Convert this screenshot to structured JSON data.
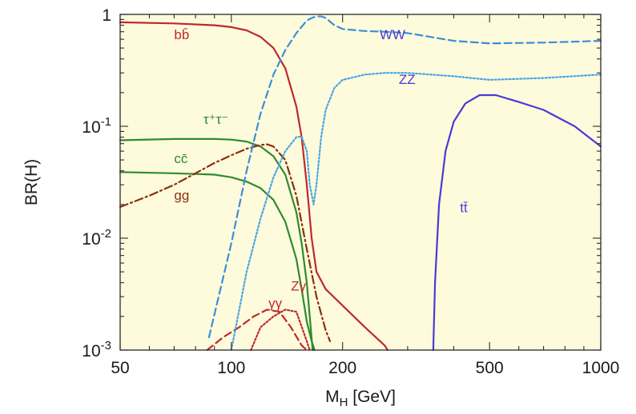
{
  "chart_data": {
    "type": "line",
    "title": "",
    "xlabel": "M",
    "xlabel_sub": "H",
    "xlabel_unit": " [GeV]",
    "ylabel": "BR(H)",
    "xscale": "log",
    "yscale": "log",
    "xlim": [
      50,
      1000
    ],
    "ylim": [
      0.001,
      1
    ],
    "grid": false,
    "legend": "none",
    "background": "#fdfbdc",
    "x_ticks": [
      {
        "value": 50,
        "label": "50"
      },
      {
        "value": 100,
        "label": "100"
      },
      {
        "value": 200,
        "label": "200"
      },
      {
        "value": 500,
        "label": "500"
      },
      {
        "value": 1000,
        "label": "1000"
      }
    ],
    "y_ticks": [
      {
        "value": 1,
        "base": "1",
        "exp": ""
      },
      {
        "value": 0.1,
        "base": "10",
        "exp": "-1"
      },
      {
        "value": 0.01,
        "base": "10",
        "exp": "-2"
      },
      {
        "value": 0.001,
        "base": "10",
        "exp": "-3"
      }
    ],
    "series": [
      {
        "name": "bb̄",
        "color": "#c0282c",
        "dash": "solid",
        "x": [
          50,
          70,
          90,
          100,
          110,
          120,
          130,
          140,
          150,
          155,
          160,
          165,
          170,
          180,
          200,
          230,
          260,
          265
        ],
        "y": [
          0.85,
          0.83,
          0.8,
          0.77,
          0.72,
          0.63,
          0.5,
          0.33,
          0.15,
          0.08,
          0.03,
          0.01,
          0.005,
          0.0035,
          0.0025,
          0.0016,
          0.0011,
          0.001
        ]
      },
      {
        "name": "τ⁺τ⁻",
        "color": "#2e8b2e",
        "dash": "solid",
        "x": [
          50,
          70,
          90,
          100,
          110,
          120,
          130,
          140,
          150,
          155,
          160,
          163,
          166
        ],
        "y": [
          0.075,
          0.077,
          0.077,
          0.076,
          0.073,
          0.066,
          0.054,
          0.037,
          0.017,
          0.009,
          0.004,
          0.002,
          0.001
        ]
      },
      {
        "name": "cc̄",
        "color": "#2e8b2e",
        "dash": "solid",
        "x": [
          50,
          70,
          90,
          100,
          110,
          120,
          130,
          140,
          150,
          155,
          160,
          165,
          168
        ],
        "y": [
          0.039,
          0.038,
          0.037,
          0.035,
          0.032,
          0.028,
          0.022,
          0.014,
          0.0065,
          0.0035,
          0.0018,
          0.0012,
          0.001
        ]
      },
      {
        "name": "gg",
        "color": "#8b2f10",
        "dash": "dashdot",
        "x": [
          50,
          60,
          70,
          80,
          90,
          100,
          110,
          120,
          125,
          130,
          140,
          150,
          160,
          170,
          180,
          185
        ],
        "y": [
          0.019,
          0.024,
          0.03,
          0.038,
          0.047,
          0.055,
          0.063,
          0.068,
          0.069,
          0.066,
          0.05,
          0.024,
          0.008,
          0.003,
          0.0015,
          0.0012
        ]
      },
      {
        "name": "γγ",
        "color": "#c0282c",
        "dash": "dashed",
        "x": [
          86,
          95,
          105,
          115,
          125,
          135,
          145,
          155,
          160
        ],
        "y": [
          0.001,
          0.0013,
          0.0016,
          0.002,
          0.0023,
          0.0022,
          0.0016,
          0.0011,
          0.001
        ]
      },
      {
        "name": "Zγ",
        "color": "#c0282c",
        "dash": "dotted",
        "x": [
          113,
          120,
          130,
          140,
          150,
          160,
          163
        ],
        "y": [
          0.001,
          0.0016,
          0.002,
          0.0023,
          0.0022,
          0.0012,
          0.001
        ]
      },
      {
        "name": "WW",
        "color": "#3a8fd6",
        "dash": "dashed",
        "x": [
          87,
          100,
          110,
          120,
          130,
          140,
          150,
          160,
          165,
          170,
          175,
          180,
          190,
          200,
          230,
          260,
          300,
          400,
          500,
          700,
          1000
        ],
        "y": [
          0.0013,
          0.009,
          0.04,
          0.13,
          0.29,
          0.48,
          0.68,
          0.88,
          0.93,
          0.96,
          0.96,
          0.93,
          0.8,
          0.74,
          0.71,
          0.7,
          0.68,
          0.58,
          0.55,
          0.56,
          0.58
        ]
      },
      {
        "name": "ZZ",
        "color": "#48a6e2",
        "dash": "dotted",
        "x": [
          100,
          110,
          120,
          130,
          140,
          150,
          155,
          160,
          163,
          167,
          170,
          175,
          180,
          190,
          200,
          230,
          260,
          300,
          400,
          500,
          700,
          1000
        ],
        "y": [
          0.001,
          0.005,
          0.015,
          0.035,
          0.06,
          0.08,
          0.081,
          0.06,
          0.03,
          0.02,
          0.03,
          0.08,
          0.14,
          0.22,
          0.26,
          0.29,
          0.3,
          0.3,
          0.28,
          0.26,
          0.27,
          0.29
        ]
      },
      {
        "name": "tt̄",
        "color": "#4a3ad6",
        "dash": "solid",
        "x": [
          352,
          356,
          365,
          380,
          400,
          430,
          470,
          520,
          600,
          700,
          850,
          1000
        ],
        "y": [
          0.001,
          0.004,
          0.02,
          0.06,
          0.11,
          0.16,
          0.19,
          0.19,
          0.165,
          0.14,
          0.1,
          0.066
        ]
      }
    ],
    "annotations": [
      {
        "text": "bb̄",
        "series": "bb̄",
        "x": 70,
        "y": 0.6,
        "color": "#c0282c"
      },
      {
        "text": "WW",
        "series": "WW",
        "x": 252,
        "y": 0.6,
        "color": "#4a3ad6"
      },
      {
        "text": "ZZ",
        "series": "ZZ",
        "x": 284,
        "y": 0.24,
        "color": "#4a3ad6"
      },
      {
        "text": "τ⁺τ⁻",
        "series": "τ⁺τ⁻",
        "x": 84,
        "y": 0.105,
        "color": "#2e8b2e"
      },
      {
        "text": "cc̄",
        "series": "cc̄",
        "x": 70,
        "y": 0.047,
        "color": "#2e8b2e"
      },
      {
        "text": "gg",
        "series": "gg",
        "x": 70,
        "y": 0.022,
        "color": "#8b2f10"
      },
      {
        "text": "tt̄",
        "series": "tt̄",
        "x": 416,
        "y": 0.017,
        "color": "#4a3ad6"
      },
      {
        "text": "γγ",
        "series": "γγ",
        "x": 126,
        "y": 0.0024,
        "color": "#c0282c"
      },
      {
        "text": "Zγ",
        "series": "Zγ",
        "x": 145,
        "y": 0.0034,
        "color": "#c0282c"
      }
    ]
  }
}
